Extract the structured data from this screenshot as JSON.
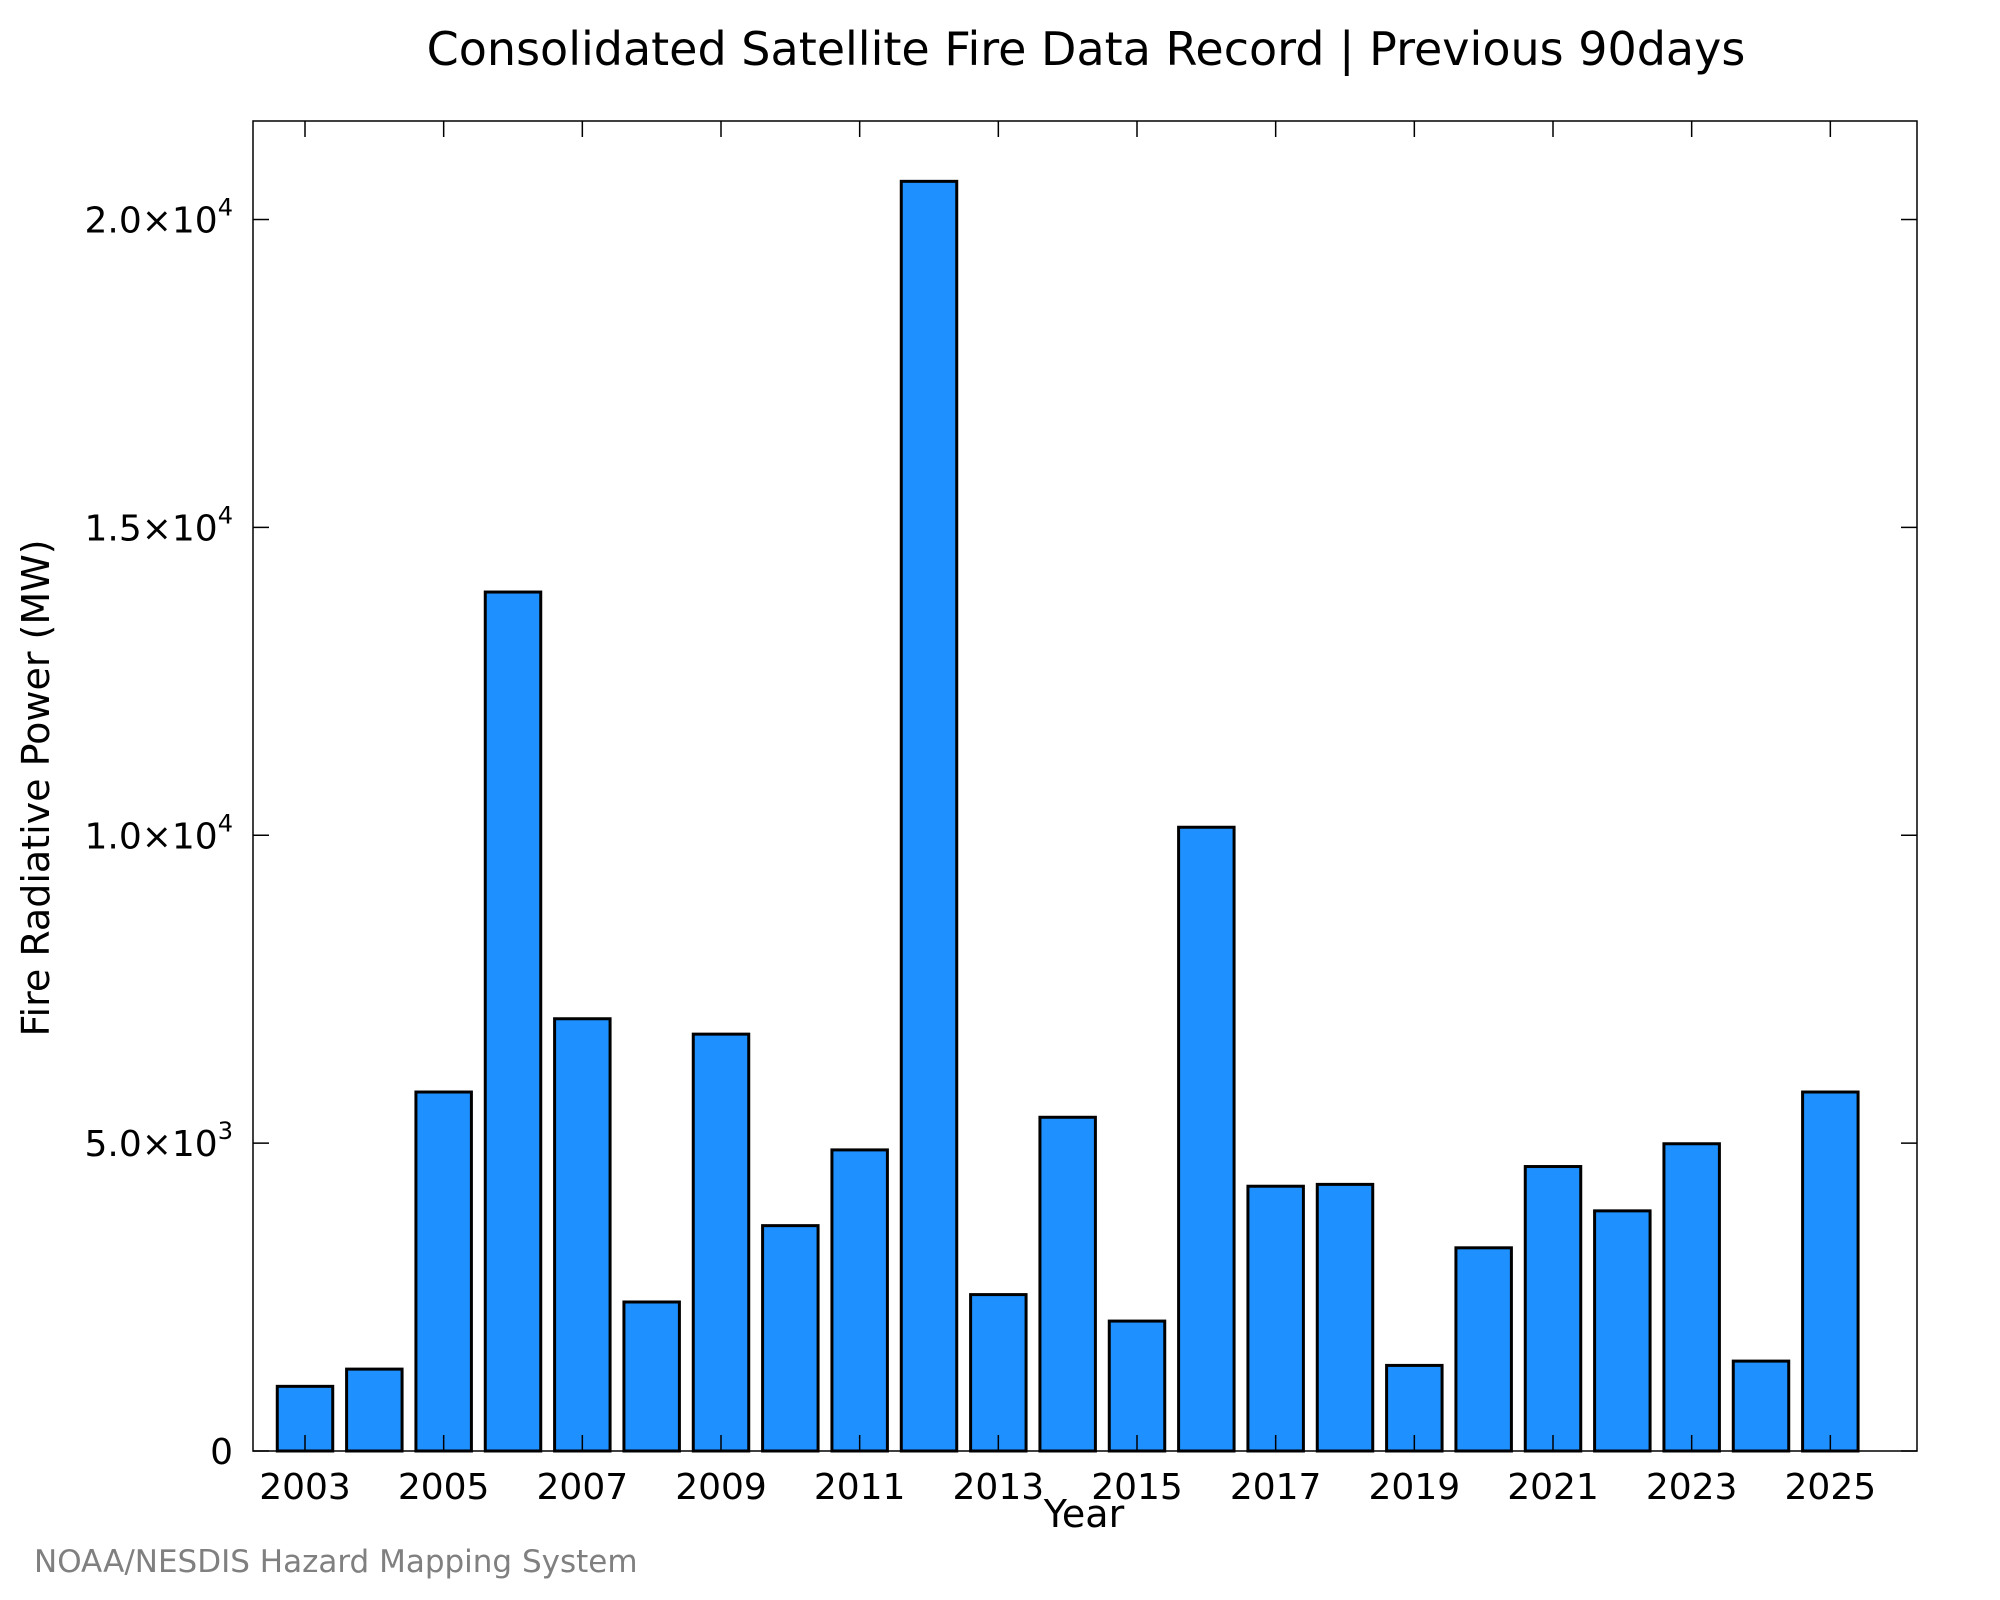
{
  "chart_data": {
    "type": "bar",
    "title": "Consolidated Satellite Fire Data Record | Previous 90days",
    "xlabel": "Year",
    "ylabel": "Fire Radiative Power (MW)",
    "source": "NOAA/NESDIS Hazard Mapping System",
    "categories": [
      "2003",
      "2004",
      "2005",
      "2006",
      "2007",
      "2008",
      "2009",
      "2010",
      "2011",
      "2012",
      "2013",
      "2014",
      "2015",
      "2016",
      "2017",
      "2018",
      "2019",
      "2020",
      "2021",
      "2022",
      "2023",
      "2024",
      "2025"
    ],
    "values": [
      1050,
      1330,
      5830,
      13950,
      7020,
      2420,
      6770,
      3660,
      4890,
      20620,
      2540,
      5420,
      2110,
      10130,
      4300,
      4330,
      1390,
      3300,
      4620,
      3900,
      4990,
      1460,
      5830
    ],
    "x_tick_labels": [
      "2003",
      "2005",
      "2007",
      "2009",
      "2011",
      "2013",
      "2015",
      "2017",
      "2019",
      "2021",
      "2023",
      "2025"
    ],
    "y_ticks": [
      {
        "value": 0,
        "mantissa": "0",
        "exp": ""
      },
      {
        "value": 5000,
        "mantissa": "5.0×10",
        "exp": "3"
      },
      {
        "value": 10000,
        "mantissa": "1.0×10",
        "exp": "4"
      },
      {
        "value": 15000,
        "mantissa": "1.5×10",
        "exp": "4"
      },
      {
        "value": 20000,
        "mantissa": "2.0×10",
        "exp": "4"
      }
    ],
    "ylim": [
      0,
      21600
    ],
    "xlim": [
      2002.25,
      2026.25
    ],
    "bar_color": "#1E90FF",
    "bar_edge_color": "#000000",
    "source_color": "#808080",
    "grid": false,
    "legend": "none"
  }
}
